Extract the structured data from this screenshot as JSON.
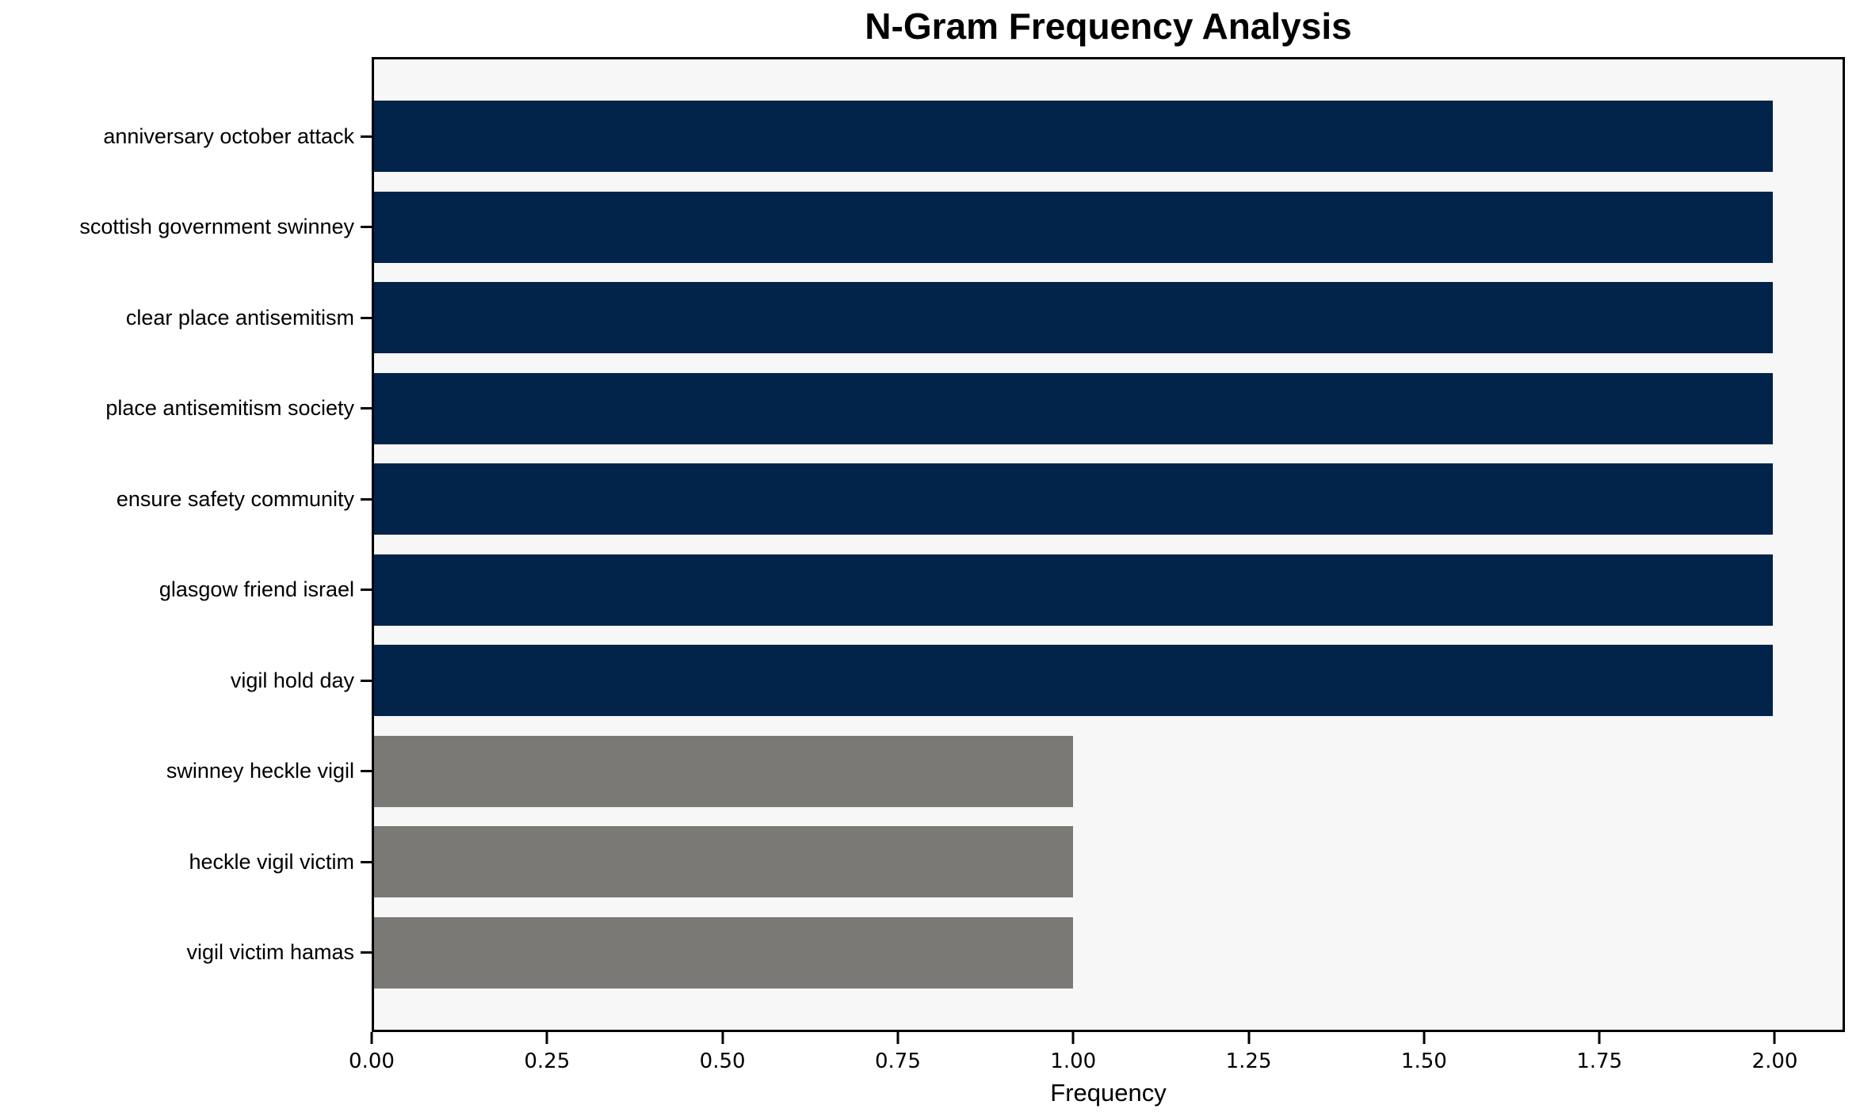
{
  "chart_data": {
    "type": "bar",
    "orientation": "horizontal",
    "title": "N-Gram Frequency Analysis",
    "xlabel": "Frequency",
    "ylabel": "",
    "grid": false,
    "legend_position": "none",
    "xlim": [
      0,
      2.1
    ],
    "categories": [
      "anniversary october attack",
      "scottish government swinney",
      "clear place antisemitism",
      "place antisemitism society",
      "ensure safety community",
      "glasgow friend israel",
      "vigil hold day",
      "swinney heckle vigil",
      "heckle vigil victim",
      "vigil victim hamas"
    ],
    "values": [
      2,
      2,
      2,
      2,
      2,
      2,
      2,
      1,
      1,
      1
    ],
    "bar_colors": [
      "#02234A",
      "#02234A",
      "#02234A",
      "#02234A",
      "#02234A",
      "#02234A",
      "#02234A",
      "#7A7975",
      "#7A7975",
      "#7A7975"
    ],
    "xticks": [
      {
        "value": 0.0,
        "label": "0.00"
      },
      {
        "value": 0.25,
        "label": "0.25"
      },
      {
        "value": 0.5,
        "label": "0.50"
      },
      {
        "value": 0.75,
        "label": "0.75"
      },
      {
        "value": 1.0,
        "label": "1.00"
      },
      {
        "value": 1.25,
        "label": "1.25"
      },
      {
        "value": 1.5,
        "label": "1.50"
      },
      {
        "value": 1.75,
        "label": "1.75"
      },
      {
        "value": 2.0,
        "label": "2.00"
      }
    ],
    "colors": {
      "bar_primary": "#02234A",
      "bar_secondary": "#7A7975",
      "plot_background": "#F7F7F7",
      "figure_background": "#FFFFFF",
      "axis": "#000000"
    }
  }
}
